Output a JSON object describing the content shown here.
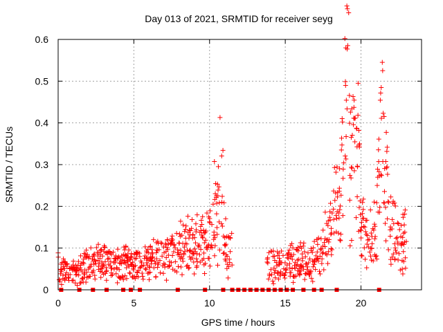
{
  "chart_data": {
    "type": "scatter",
    "title": "Day 013 of 2021, SRMTID for receiver seyg",
    "xlabel": "GPS time / hours",
    "ylabel": "SRMTID / TECUs",
    "xlim": [
      0,
      24
    ],
    "ylim": [
      0,
      0.6
    ],
    "xticks": [
      0,
      5,
      10,
      15,
      20
    ],
    "yticks": [
      0,
      0.1,
      0.2,
      0.3,
      0.4,
      0.5,
      0.6
    ],
    "ytick_labels": [
      "0",
      "0.1",
      "0.2",
      "0.3",
      "0.4",
      "0.5",
      "0.6"
    ],
    "grid": true,
    "marker": "plus",
    "color": "#ff0000",
    "series": [
      {
        "name": "SRMTID",
        "envelope_points": [
          [
            0.0,
            0.06
          ],
          [
            0.5,
            0.05
          ],
          [
            1.0,
            0.04
          ],
          [
            1.5,
            0.05
          ],
          [
            2.0,
            0.06
          ],
          [
            2.5,
            0.06
          ],
          [
            3.0,
            0.07
          ],
          [
            3.5,
            0.06
          ],
          [
            4.0,
            0.06
          ],
          [
            4.5,
            0.07
          ],
          [
            5.0,
            0.06
          ],
          [
            5.5,
            0.06
          ],
          [
            6.0,
            0.07
          ],
          [
            6.5,
            0.07
          ],
          [
            7.0,
            0.08
          ],
          [
            7.5,
            0.09
          ],
          [
            8.0,
            0.1
          ],
          [
            8.5,
            0.1
          ],
          [
            9.0,
            0.11
          ],
          [
            9.5,
            0.11
          ],
          [
            10.0,
            0.12
          ],
          [
            10.5,
            0.2
          ],
          [
            10.8,
            0.25
          ],
          [
            11.0,
            0.12
          ],
          [
            11.5,
            0.08
          ],
          [
            13.8,
            0.06
          ],
          [
            14.3,
            0.06
          ],
          [
            14.8,
            0.06
          ],
          [
            15.8,
            0.07
          ],
          [
            16.5,
            0.06
          ],
          [
            17.0,
            0.07
          ],
          [
            17.5,
            0.1
          ],
          [
            18.0,
            0.14
          ],
          [
            18.5,
            0.2
          ],
          [
            18.9,
            0.35
          ],
          [
            19.0,
            0.55
          ],
          [
            19.3,
            0.3
          ],
          [
            19.8,
            0.4
          ],
          [
            20.0,
            0.15
          ],
          [
            20.5,
            0.13
          ],
          [
            21.0,
            0.12
          ],
          [
            21.3,
            0.35
          ],
          [
            21.4,
            0.45
          ],
          [
            21.7,
            0.25
          ],
          [
            22.0,
            0.15
          ],
          [
            22.5,
            0.1
          ],
          [
            23.0,
            0.12
          ]
        ],
        "peak": {
          "x": 19.0,
          "y": 0.58
        },
        "zero_markers_hours": [
          0.2,
          1.4,
          2.3,
          3.2,
          4.3,
          4.8,
          5.4,
          7.9,
          9.7,
          10.9,
          11.5,
          11.9,
          12.3,
          12.7,
          13.1,
          13.5,
          13.9,
          14.3,
          14.7,
          15.1,
          15.5,
          16.2,
          16.9,
          17.4,
          18.4,
          21.2
        ]
      }
    ]
  }
}
